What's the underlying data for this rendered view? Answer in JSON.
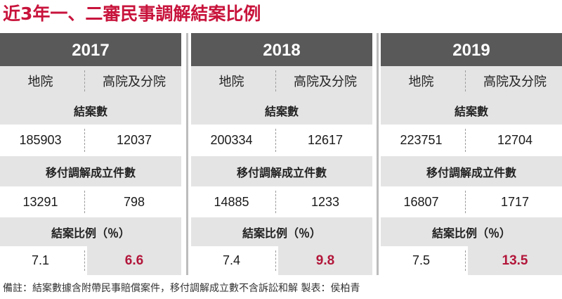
{
  "title": "近3年一、二審民事調解結案比例",
  "chart_data": {
    "type": "table",
    "title": "近3年一、二審民事調解結案比例",
    "columns": [
      "地院",
      "高院及分院"
    ],
    "sections": [
      "結案數",
      "移付調解成立件數",
      "結案比例（％）"
    ],
    "years": [
      {
        "year": "2017",
        "closed_cases": [
          "185903",
          "12037"
        ],
        "mediated": [
          "13291",
          "798"
        ],
        "ratio": [
          "7.1",
          "6.6"
        ]
      },
      {
        "year": "2018",
        "closed_cases": [
          "200334",
          "12617"
        ],
        "mediated": [
          "14885",
          "1233"
        ],
        "ratio": [
          "7.4",
          "9.8"
        ]
      },
      {
        "year": "2019",
        "closed_cases": [
          "223751",
          "12704"
        ],
        "mediated": [
          "16807",
          "1717"
        ],
        "ratio": [
          "7.5",
          "13.5"
        ]
      }
    ]
  },
  "footnote": "備註：結案數據含附帶民事賠償案件，移付調解成立數不含訴訟和解 製表：侯柏青",
  "colors": {
    "title": "#c8143c",
    "year_bar": "#595959",
    "highlight": "#b2163a",
    "row_shade": "#e4e4e4"
  }
}
